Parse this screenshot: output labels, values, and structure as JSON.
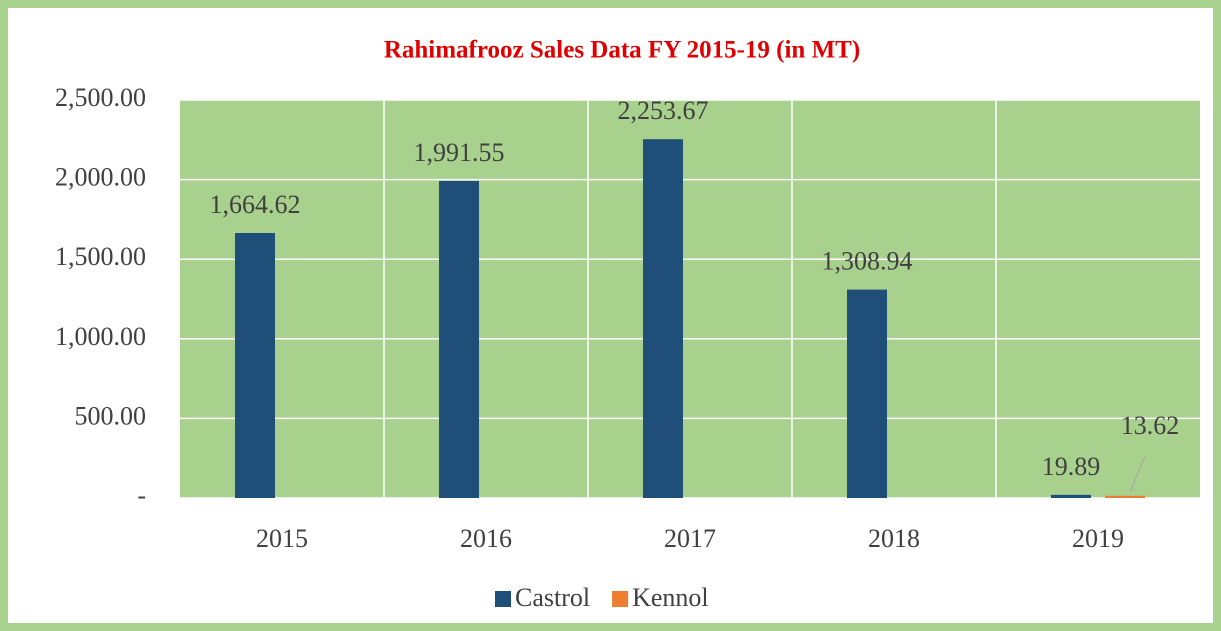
{
  "chart_data": {
    "type": "bar",
    "title": "Rahimafrooz Sales Data FY 2015-19 (in MT)",
    "categories": [
      "2015",
      "2016",
      "2017",
      "2018",
      "2019"
    ],
    "series": [
      {
        "name": "Castrol",
        "color": "#1f4e79",
        "values": [
          1664.62,
          1991.55,
          2253.67,
          1308.94,
          19.89
        ],
        "value_labels": [
          "1,664.62",
          "1,991.55",
          "2,253.67",
          "1,308.94",
          "19.89"
        ]
      },
      {
        "name": "Kennol",
        "color": "#ed7d31",
        "values": [
          null,
          null,
          null,
          null,
          13.62
        ],
        "value_labels": [
          null,
          null,
          null,
          null,
          "13.62"
        ]
      }
    ],
    "ylim": [
      0,
      2500
    ],
    "yticks": [
      {
        "value": 0,
        "label": "-"
      },
      {
        "value": 500,
        "label": "500.00"
      },
      {
        "value": 1000,
        "label": "1,000.00"
      },
      {
        "value": 1500,
        "label": "1,500.00"
      },
      {
        "value": 2000,
        "label": "2,000.00"
      },
      {
        "value": 2500,
        "label": "2,500.00"
      }
    ],
    "grid": true,
    "legend": "bottom"
  }
}
